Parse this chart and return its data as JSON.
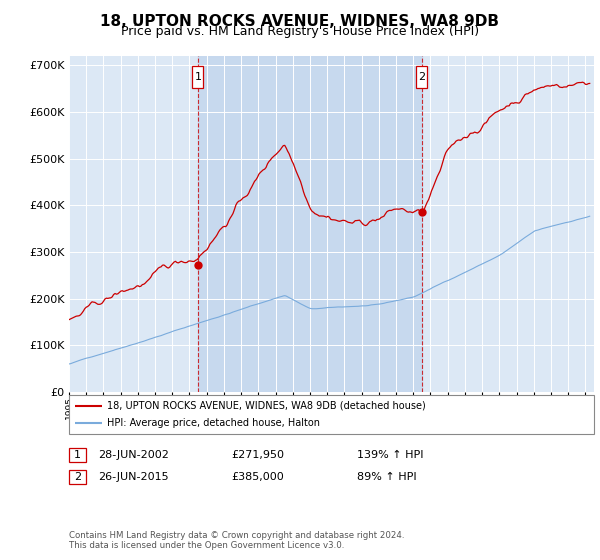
{
  "title": "18, UPTON ROCKS AVENUE, WIDNES, WA8 9DB",
  "subtitle": "Price paid vs. HM Land Registry's House Price Index (HPI)",
  "ylim": [
    0,
    720000
  ],
  "yticks": [
    0,
    100000,
    200000,
    300000,
    400000,
    500000,
    600000,
    700000
  ],
  "ytick_labels": [
    "£0",
    "£100K",
    "£200K",
    "£300K",
    "£400K",
    "£500K",
    "£600K",
    "£700K"
  ],
  "hpi_color": "#7aabdc",
  "price_color": "#cc0000",
  "sale1_date_label": "28-JUN-2002",
  "sale1_price": 271950,
  "sale1_hpi_pct": "139% ↑ HPI",
  "sale2_date_label": "26-JUN-2015",
  "sale2_price": 385000,
  "sale2_hpi_pct": "89% ↑ HPI",
  "legend_label_price": "18, UPTON ROCKS AVENUE, WIDNES, WA8 9DB (detached house)",
  "legend_label_hpi": "HPI: Average price, detached house, Halton",
  "footer": "Contains HM Land Registry data © Crown copyright and database right 2024.\nThis data is licensed under the Open Government Licence v3.0.",
  "background_color": "#ffffff",
  "plot_bg_color": "#dce8f5",
  "grid_color": "#ffffff",
  "shade_color": "#c5d8ee",
  "title_fontsize": 11,
  "subtitle_fontsize": 9,
  "axis_fontsize": 8
}
